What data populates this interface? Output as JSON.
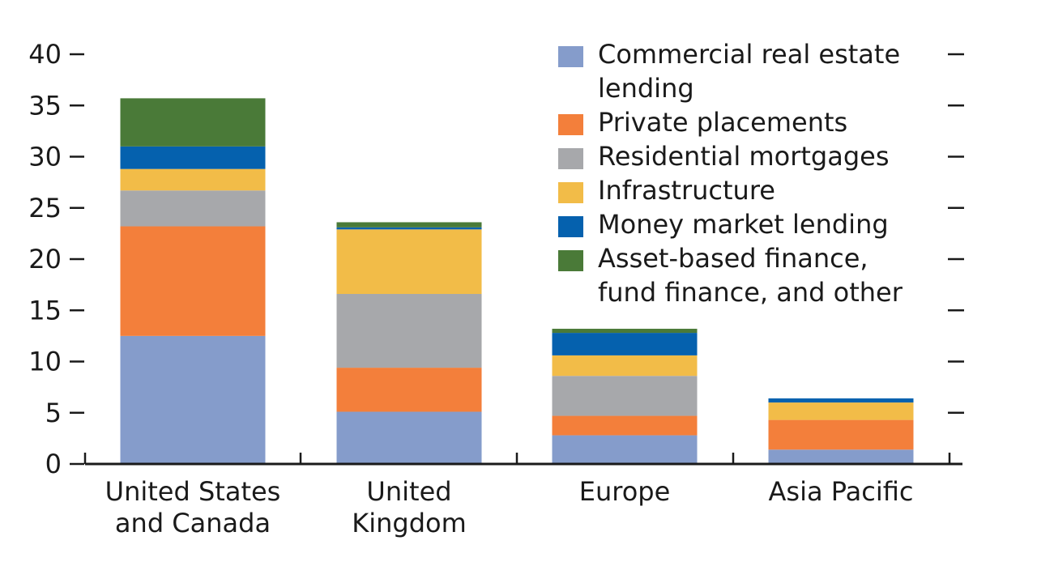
{
  "chart_data": {
    "type": "bar",
    "stacked": true,
    "title": "",
    "xlabel": "",
    "ylabel": "",
    "ylim": [
      0,
      40
    ],
    "yticks": [
      0,
      5,
      10,
      15,
      20,
      25,
      30,
      35,
      40
    ],
    "right_ticks": true,
    "legend_position": "top-right",
    "categories": [
      [
        "United States",
        "and Canada"
      ],
      [
        "United",
        "Kingdom"
      ],
      [
        "Europe"
      ],
      [
        "Asia Pacific"
      ]
    ],
    "series": [
      {
        "name": [
          "Commercial real estate",
          "lending"
        ],
        "color": "#859ccb",
        "values": [
          12.5,
          5.1,
          2.8,
          1.4
        ]
      },
      {
        "name": [
          "Private placements"
        ],
        "color": "#f37f3b",
        "values": [
          10.7,
          4.3,
          1.9,
          2.9
        ]
      },
      {
        "name": [
          "Residential mortgages"
        ],
        "color": "#a7a8ab",
        "values": [
          3.5,
          7.2,
          3.9,
          0.0
        ]
      },
      {
        "name": [
          "Infrastructure"
        ],
        "color": "#f2bc48",
        "values": [
          2.1,
          6.3,
          2.0,
          1.7
        ]
      },
      {
        "name": [
          "Money market lending"
        ],
        "color": "#0561ae",
        "values": [
          2.2,
          0.2,
          2.2,
          0.4
        ]
      },
      {
        "name": [
          "Asset-based finance,",
          "fund finance, and other"
        ],
        "color": "#4a7a38",
        "values": [
          4.7,
          0.5,
          0.4,
          0.0
        ]
      }
    ]
  }
}
